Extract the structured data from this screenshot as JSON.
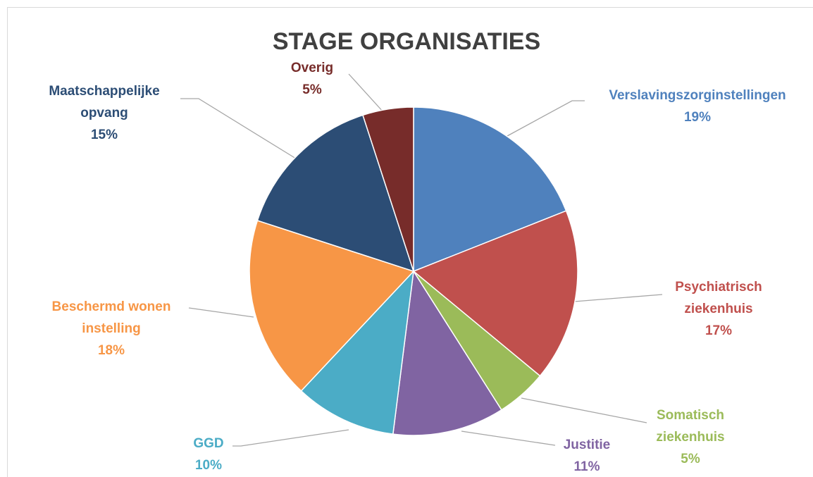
{
  "chart_data": {
    "type": "pie",
    "title": "STAGE ORGANISATIES",
    "categories": [
      "Verslavingszorginstellingen",
      "Psychiatrisch ziekenhuis",
      "Somatisch ziekenhuis",
      "Justitie",
      "GGD",
      "Beschermd wonen instelling",
      "Maatschappelijke opvang",
      "Overig"
    ],
    "values": [
      19,
      17,
      5,
      11,
      10,
      18,
      15,
      5
    ],
    "value_labels": [
      "19%",
      "17%",
      "5%",
      "11%",
      "10%",
      "18%",
      "15%",
      "5%"
    ],
    "colors": [
      "#4f81bd",
      "#c0504d",
      "#9bbb59",
      "#8064a2",
      "#4bacc6",
      "#f79646",
      "#2c4d75",
      "#772c2a"
    ]
  }
}
